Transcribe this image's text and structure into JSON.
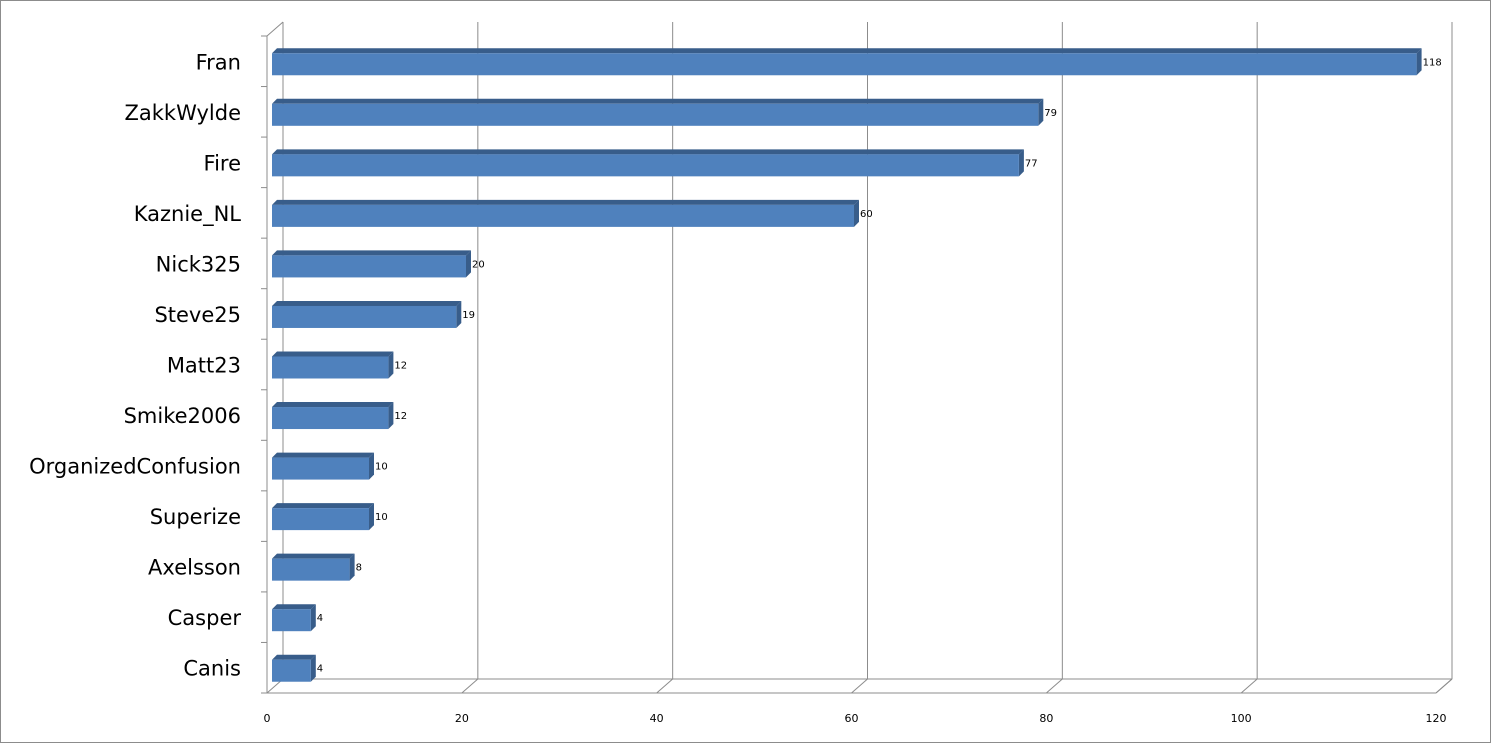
{
  "chart_data": {
    "type": "bar",
    "orientation": "horizontal",
    "style": "3d-clustered",
    "title": "",
    "xlabel": "",
    "ylabel": "",
    "categories": [
      "Fran",
      "ZakkWylde",
      "Fire",
      "Kaznie_NL",
      "Nick325",
      "Steve25",
      "Matt23",
      "Smike2006",
      "OrganizedConfusion",
      "Superize",
      "Axelsson",
      "Casper",
      "Canis"
    ],
    "values": [
      118,
      79,
      77,
      60,
      20,
      19,
      12,
      12,
      10,
      10,
      8,
      4,
      4
    ],
    "value_labels": [
      "118",
      "79",
      "77",
      "60",
      "20",
      "19",
      "12",
      "12",
      "10",
      "10",
      "8",
      "4",
      "4"
    ],
    "xlim": [
      0,
      120
    ],
    "x_ticks": [
      "0",
      "20",
      "40",
      "60",
      "80",
      "100",
      "120"
    ],
    "gridlines": true,
    "legend": "none",
    "colors": {
      "bar_front": "#4f81bd",
      "bar_top": "#6f97cc",
      "bar_side": "#385d8a",
      "grid": "#8c8c8c"
    }
  }
}
